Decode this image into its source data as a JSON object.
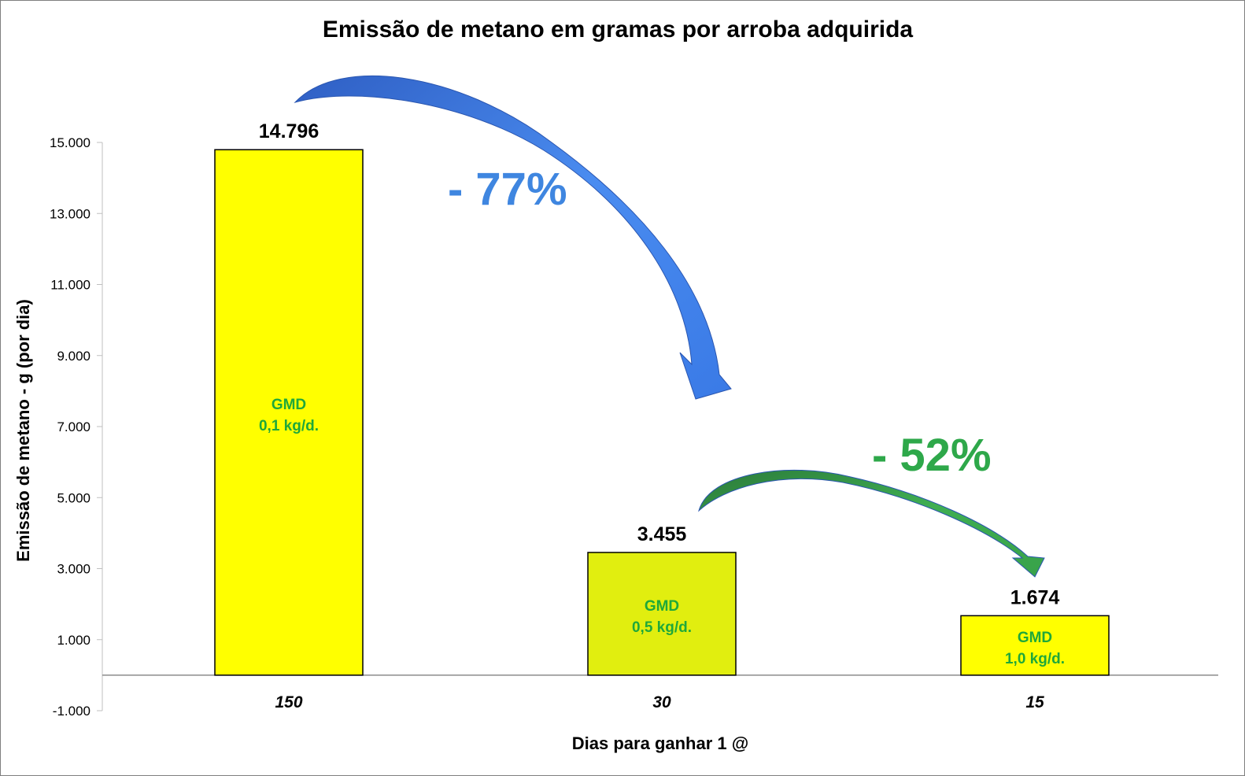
{
  "chart_data": {
    "type": "bar",
    "title": "Emissão de metano em gramas por arroba adquirida",
    "xlabel": "Dias para ganhar 1 @",
    "ylabel": "Emissão de metano - g (por dia)",
    "ylim": [
      -1000,
      15000
    ],
    "yticks": [
      "-1.000",
      "1.000",
      "3.000",
      "5.000",
      "7.000",
      "9.000",
      "11.000",
      "13.000",
      "15.000"
    ],
    "ytick_values": [
      -1000,
      1000,
      3000,
      5000,
      7000,
      9000,
      11000,
      13000,
      15000
    ],
    "grid": false,
    "categories": [
      "150",
      "30",
      "15"
    ],
    "values": [
      14796,
      3455,
      1674
    ],
    "data_labels": [
      "14.796",
      "3.455",
      "1.674"
    ],
    "bar_colors": [
      "#ffff00",
      "#e1ee0f",
      "#ffff00"
    ],
    "inner_labels": [
      {
        "line1": "GMD",
        "line2": "0,1 kg/d."
      },
      {
        "line1": "GMD",
        "line2": "0,5 kg/d."
      },
      {
        "line1": "GMD",
        "line2": "1,0 kg/d."
      }
    ],
    "annotations": [
      {
        "text": "- 77%",
        "color": "#3f86e0",
        "from": "150",
        "to": "30"
      },
      {
        "text": "- 52%",
        "color": "#2ea84a",
        "from": "30",
        "to": "15"
      }
    ]
  },
  "colors": {
    "inner_label": "#1fa83a",
    "arrow_blue": "#3f86e0",
    "arrow_green": "#2ea84a",
    "bar_border": "#000000"
  }
}
